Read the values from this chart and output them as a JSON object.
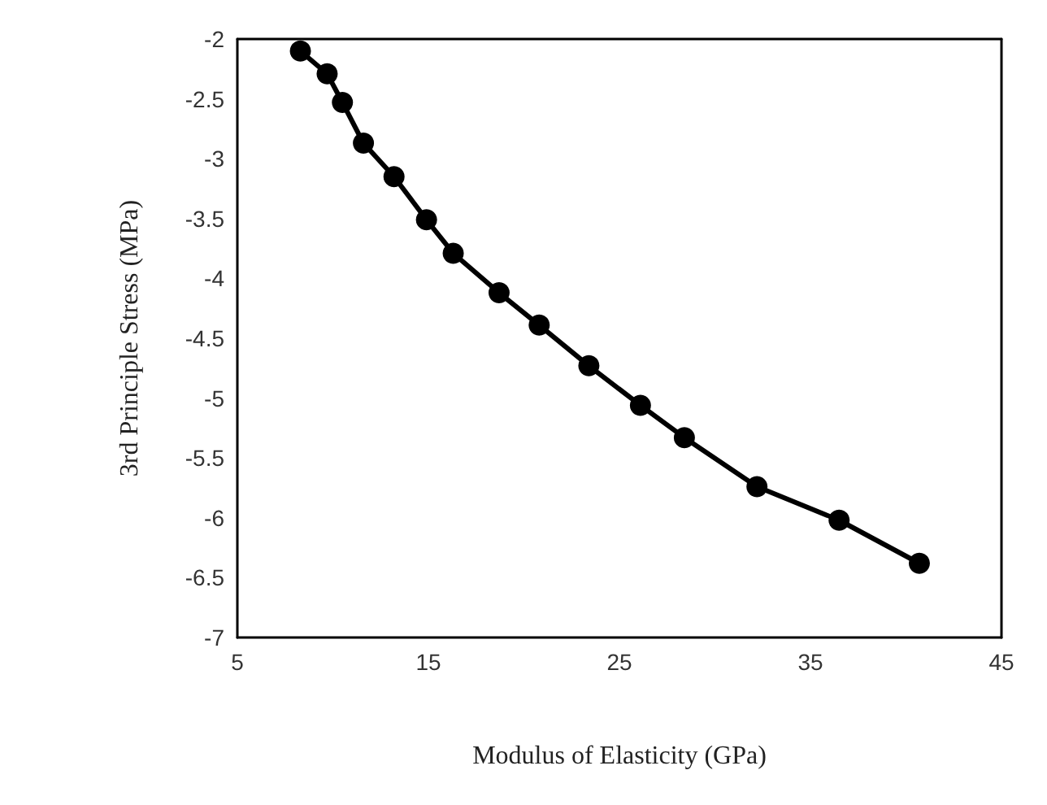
{
  "chart_data": {
    "type": "line",
    "xlabel": "Modulus of Elasticity (GPa)",
    "ylabel": "3rd Principle Stress (MPa)",
    "x": [
      8.3,
      9.7,
      10.5,
      11.6,
      13.2,
      14.9,
      16.3,
      18.7,
      20.8,
      23.4,
      26.1,
      28.4,
      32.2,
      36.5,
      40.7
    ],
    "series": [
      {
        "color": "#000000",
        "values": [
          -2.1,
          -2.29,
          -2.53,
          -2.87,
          -3.15,
          -3.51,
          -3.79,
          -4.12,
          -4.39,
          -4.73,
          -5.06,
          -5.33,
          -5.74,
          -6.02,
          -6.38
        ]
      }
    ],
    "xlim": [
      5,
      45
    ],
    "xticks": [
      5,
      15,
      25,
      35,
      45
    ],
    "ylim": [
      -7,
      -2
    ],
    "yticks": [
      -7,
      -6.5,
      -6,
      -5.5,
      -5,
      -4.5,
      -4,
      -3.5,
      -3,
      -2.5,
      -2
    ],
    "grid": false,
    "marker": "circle",
    "line_style": "solid"
  }
}
